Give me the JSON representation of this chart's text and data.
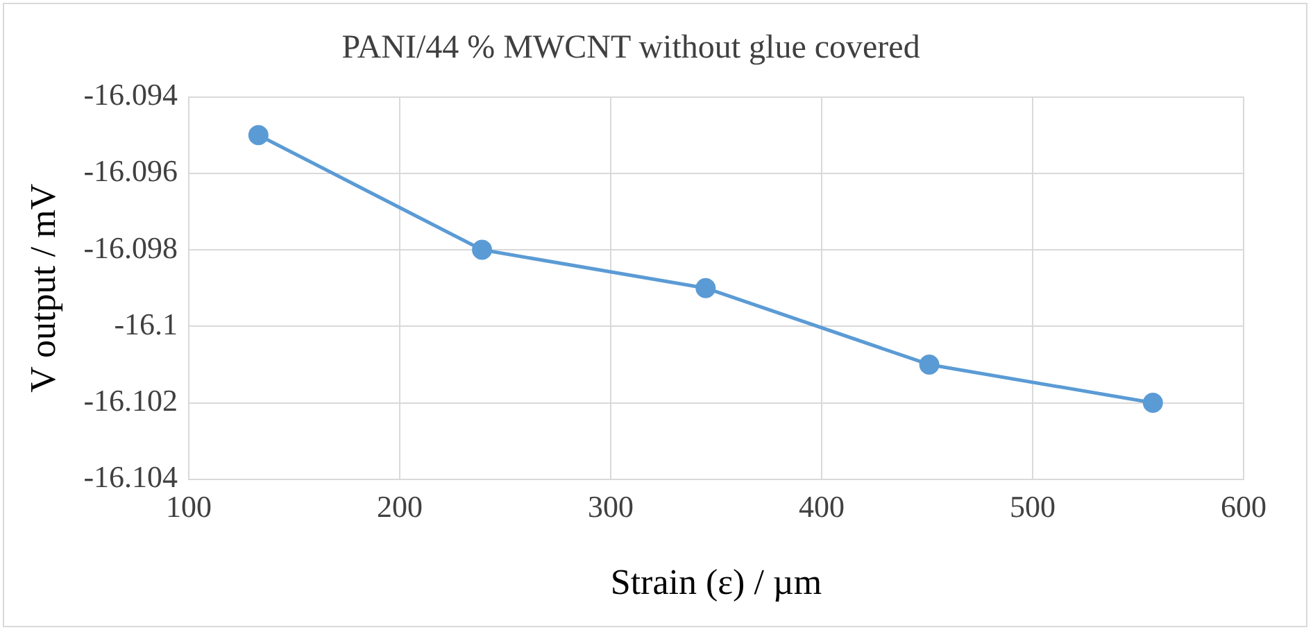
{
  "chart_data": {
    "type": "line",
    "title": "PANI/44 % MWCNT without glue covered",
    "xlabel": "Strain (ε) / µm",
    "ylabel": "V output / mV",
    "x": [
      133,
      239,
      345,
      451,
      557
    ],
    "series": [
      {
        "color": "#5b9bd5",
        "values": [
          -16.095,
          -16.098,
          -16.099,
          -16.101,
          -16.102
        ]
      }
    ],
    "xlim": [
      100,
      600
    ],
    "xticks": [
      100,
      200,
      300,
      400,
      500,
      600
    ],
    "ylim": [
      -16.104,
      -16.094
    ],
    "yticks": [
      -16.104,
      -16.102,
      -16.1,
      -16.098,
      -16.096,
      -16.094
    ],
    "grid": true,
    "legend": false,
    "marker": "circle",
    "line_style": "solid"
  }
}
